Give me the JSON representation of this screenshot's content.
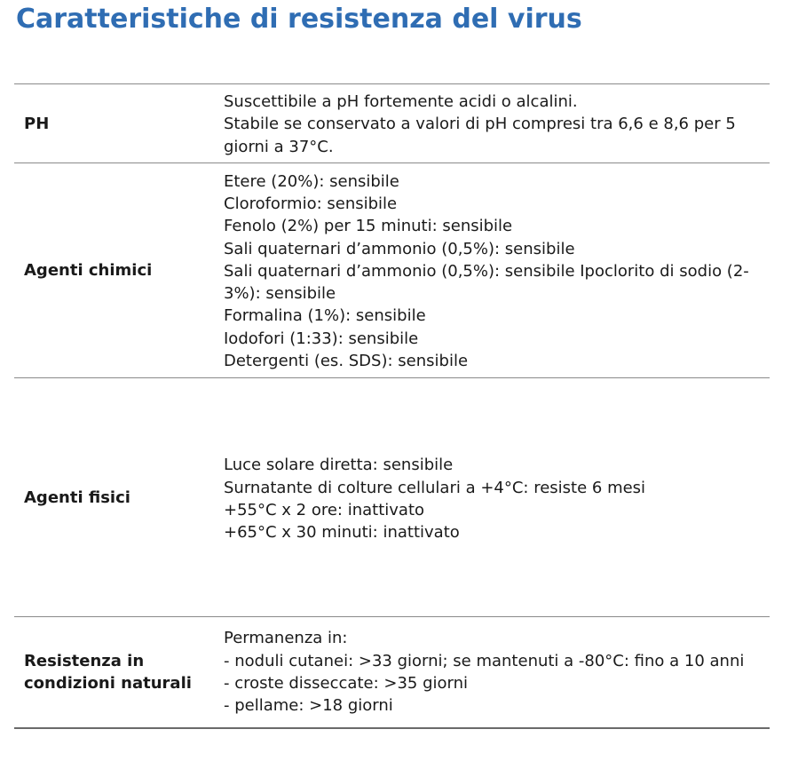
{
  "title": "Caratteristiche di resistenza del virus",
  "rows": [
    {
      "label": "PH",
      "lines": [
        "Suscettibile a pH fortemente acidi o alcalini.",
        "Stabile se conservato a valori di pH compresi tra 6,6 e 8,6 per 5 giorni a 37°C."
      ]
    },
    {
      "label": "Agenti chimici",
      "lines": [
        "Etere (20%): sensibile",
        "Cloroformio: sensibile",
        "Fenolo (2%) per 15 minuti: sensibile",
        "Sali quaternari d’ammonio (0,5%): sensibile",
        "Sali quaternari d’ammonio (0,5%): sensibile Ipoclorito di sodio (2-3%): sensibile",
        "Formalina (1%): sensibile",
        "Iodofori (1:33): sensibile",
        "Detergenti (es. SDS): sensibile"
      ]
    },
    {
      "label": "Agenti fisici",
      "lines": [
        "Luce solare diretta: sensibile",
        "Surnatante di colture cellulari a +4°C: resiste 6 mesi",
        "+55°C x 2 ore: inattivato",
        "+65°C x 30 minuti: inattivato"
      ]
    },
    {
      "label": "Resistenza in condizioni naturali",
      "lines": [
        "Permanenza in:",
        "- noduli cutanei: >33 giorni; se mantenuti a -80°C: fino a 10 anni",
        "- croste disseccate: >35 giorni",
        "- pellame: >18 giorni"
      ]
    }
  ]
}
